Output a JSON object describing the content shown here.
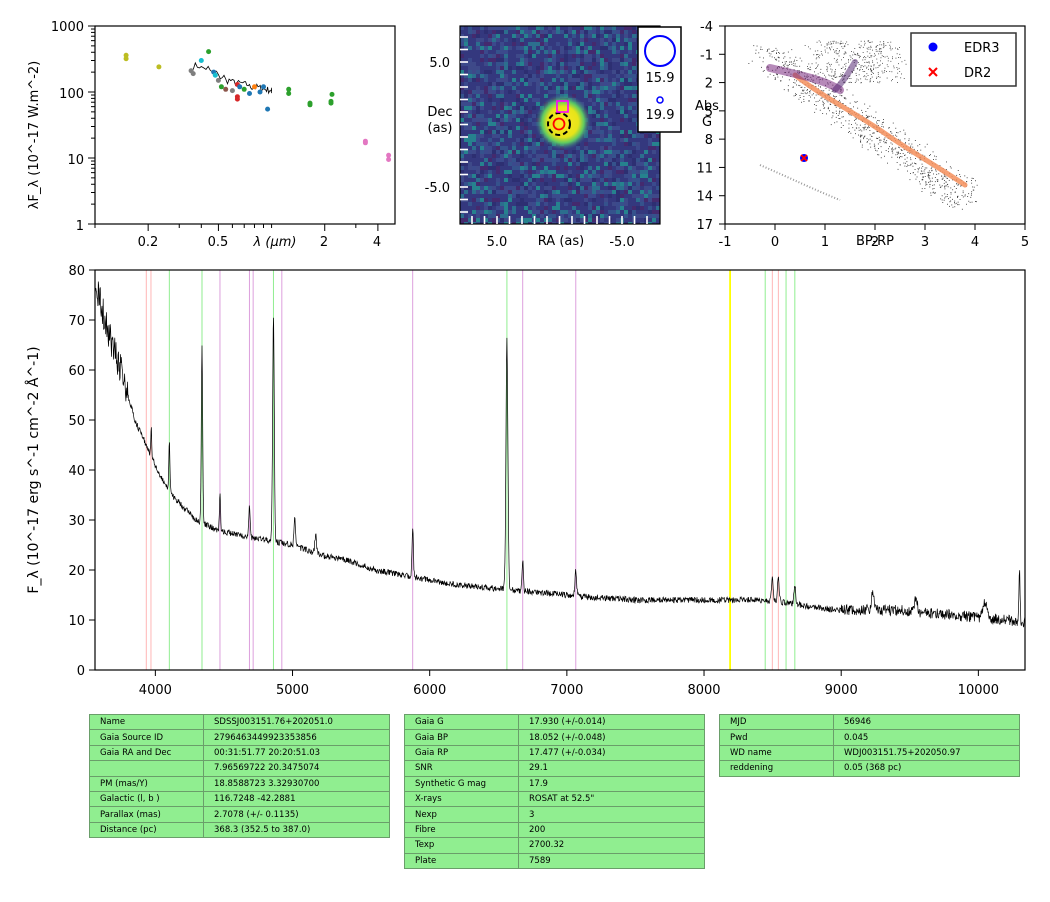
{
  "sed": {
    "ylabel": "λF_λ (10^-17 W.m^-2)",
    "xlabel": "λ (μm)",
    "yticks": [
      "1000",
      "100",
      "10",
      "1"
    ],
    "xticks": [
      "0.2",
      "0.5",
      "2",
      "4"
    ],
    "xlim": [
      0.1,
      5.0
    ],
    "ylim": [
      1,
      1000
    ],
    "points": [
      {
        "x": 0.15,
        "y": 360,
        "color": "#bcbd22"
      },
      {
        "x": 0.15,
        "y": 320,
        "color": "#bcbd22"
      },
      {
        "x": 0.23,
        "y": 240,
        "color": "#bcbd22"
      },
      {
        "x": 0.35,
        "y": 210,
        "color": "#7f7f7f"
      },
      {
        "x": 0.36,
        "y": 190,
        "color": "#7f7f7f"
      },
      {
        "x": 0.4,
        "y": 300,
        "color": "#17becf"
      },
      {
        "x": 0.44,
        "y": 410,
        "color": "#2ca02c"
      },
      {
        "x": 0.47,
        "y": 200,
        "color": "#1f77b4"
      },
      {
        "x": 0.48,
        "y": 180,
        "color": "#17becf"
      },
      {
        "x": 0.5,
        "y": 150,
        "color": "#7f7f7f"
      },
      {
        "x": 0.52,
        "y": 120,
        "color": "#2ca02c"
      },
      {
        "x": 0.55,
        "y": 110,
        "color": "#8c564b"
      },
      {
        "x": 0.6,
        "y": 105,
        "color": "#7f7f7f"
      },
      {
        "x": 0.64,
        "y": 130,
        "color": "#d62728"
      },
      {
        "x": 0.64,
        "y": 85,
        "color": "#d62728"
      },
      {
        "x": 0.64,
        "y": 78,
        "color": "#d62728"
      },
      {
        "x": 0.66,
        "y": 120,
        "color": "#1f77b4"
      },
      {
        "x": 0.7,
        "y": 110,
        "color": "#2ca02c"
      },
      {
        "x": 0.75,
        "y": 95,
        "color": "#1f77b4"
      },
      {
        "x": 0.8,
        "y": 120,
        "color": "#ff7f0e"
      },
      {
        "x": 0.86,
        "y": 100,
        "color": "#1f77b4"
      },
      {
        "x": 0.9,
        "y": 120,
        "color": "#1f77b4"
      },
      {
        "x": 0.95,
        "y": 55,
        "color": "#1f77b4"
      },
      {
        "x": 1.25,
        "y": 110,
        "color": "#2ca02c"
      },
      {
        "x": 1.25,
        "y": 95,
        "color": "#2ca02c"
      },
      {
        "x": 1.65,
        "y": 68,
        "color": "#2ca02c"
      },
      {
        "x": 1.65,
        "y": 64,
        "color": "#2ca02c"
      },
      {
        "x": 2.17,
        "y": 72,
        "color": "#2ca02c"
      },
      {
        "x": 2.17,
        "y": 68,
        "color": "#2ca02c"
      },
      {
        "x": 2.2,
        "y": 92,
        "color": "#2ca02c"
      },
      {
        "x": 3.4,
        "y": 18,
        "color": "#e377c2"
      },
      {
        "x": 3.4,
        "y": 17,
        "color": "#e377c2"
      },
      {
        "x": 4.6,
        "y": 11,
        "color": "#e377c2"
      },
      {
        "x": 4.6,
        "y": 9.5,
        "color": "#e377c2"
      }
    ],
    "spectrum": [
      [
        0.36,
        250
      ],
      [
        0.4,
        230
      ],
      [
        0.45,
        200
      ],
      [
        0.5,
        170
      ],
      [
        0.55,
        150
      ],
      [
        0.6,
        140
      ],
      [
        0.65,
        135
      ],
      [
        0.7,
        130
      ],
      [
        0.75,
        120
      ],
      [
        0.8,
        118
      ],
      [
        0.85,
        115
      ],
      [
        0.9,
        110
      ],
      [
        0.95,
        108
      ],
      [
        1.0,
        105
      ]
    ]
  },
  "image_panel": {
    "ylabel_line1": "Dec",
    "ylabel_line2": "(as)",
    "xlabel": "RA (as)",
    "xticks": [
      "5.0",
      "-5.0"
    ],
    "yticks": [
      "5.0",
      "-5.0"
    ],
    "legend": [
      "15.9",
      "19.9"
    ]
  },
  "cmd": {
    "ylabel_line1": "Abs",
    "ylabel_line2": "G",
    "xlabel": "BP-RP",
    "yticks": [
      "-4",
      "-1",
      "2",
      "5",
      "8",
      "11",
      "14",
      "17"
    ],
    "xticks": [
      "-1",
      "0",
      "1",
      "2",
      "3",
      "4",
      "5"
    ],
    "xlim": [
      -1,
      5
    ],
    "ylim": [
      17,
      -4
    ],
    "legend": [
      {
        "label": "EDR3",
        "color": "#0000ff",
        "marker": "circle"
      },
      {
        "label": "DR2",
        "color": "#ff0000",
        "marker": "x"
      }
    ],
    "target": {
      "bp_rp": 0.58,
      "abs_g": 10.0
    }
  },
  "chart_data": {
    "type": "line",
    "ylabel": "F_λ (10^-17 erg s^-1 cm^-2 Å^-1)",
    "xlabel": "",
    "xlim": [
      3560,
      10340
    ],
    "ylim": [
      0,
      80
    ],
    "xticks": [
      4000,
      5000,
      6000,
      7000,
      8000,
      9000,
      10000
    ],
    "yticks": [
      0,
      10,
      20,
      30,
      40,
      50,
      60,
      70,
      80
    ],
    "continuum": [
      [
        3560,
        78
      ],
      [
        3650,
        68
      ],
      [
        3750,
        60
      ],
      [
        3850,
        50
      ],
      [
        3950,
        44
      ],
      [
        4050,
        38
      ],
      [
        4150,
        34
      ],
      [
        4300,
        30
      ],
      [
        4450,
        28
      ],
      [
        4600,
        27
      ],
      [
        4800,
        26
      ],
      [
        5000,
        25
      ],
      [
        5200,
        23
      ],
      [
        5400,
        22
      ],
      [
        5600,
        20
      ],
      [
        5800,
        19
      ],
      [
        6000,
        18
      ],
      [
        6200,
        17
      ],
      [
        6400,
        16.5
      ],
      [
        6600,
        16
      ],
      [
        6800,
        15.5
      ],
      [
        7000,
        15
      ],
      [
        7200,
        14.5
      ],
      [
        7500,
        14
      ],
      [
        7800,
        14
      ],
      [
        8000,
        14
      ],
      [
        8200,
        14
      ],
      [
        8400,
        14
      ],
      [
        8600,
        13.5
      ],
      [
        8800,
        12.5
      ],
      [
        9000,
        12
      ],
      [
        9200,
        12
      ],
      [
        9400,
        12
      ],
      [
        9600,
        11.5
      ],
      [
        9800,
        11
      ],
      [
        10000,
        10.5
      ],
      [
        10200,
        10
      ],
      [
        10340,
        9.5
      ]
    ],
    "emission_lines": [
      [
        3970,
        6,
        3
      ],
      [
        4102,
        10,
        4
      ],
      [
        4340,
        35,
        5
      ],
      [
        4471,
        8,
        4
      ],
      [
        4686,
        6,
        5
      ],
      [
        4861,
        45,
        6
      ],
      [
        5016,
        6,
        5
      ],
      [
        5169,
        4,
        6
      ],
      [
        5876,
        10,
        5
      ],
      [
        6563,
        50,
        7
      ],
      [
        6678,
        6,
        5
      ],
      [
        7065,
        5,
        6
      ],
      [
        8498,
        5,
        6
      ],
      [
        8542,
        5,
        6
      ],
      [
        8662,
        4,
        6
      ],
      [
        9229,
        3,
        10
      ],
      [
        9546,
        3,
        10
      ],
      [
        10050,
        3,
        15
      ],
      [
        10300,
        10,
        4
      ]
    ],
    "vlines": [
      {
        "x": 3934,
        "color": "#ffb6b6"
      },
      {
        "x": 3968,
        "color": "#ffb6b6"
      },
      {
        "x": 4102,
        "color": "#90ee90"
      },
      {
        "x": 4340,
        "color": "#90ee90"
      },
      {
        "x": 4471,
        "color": "#dda0dd"
      },
      {
        "x": 4686,
        "color": "#dda0dd"
      },
      {
        "x": 4713,
        "color": "#dda0dd"
      },
      {
        "x": 4861,
        "color": "#90ee90"
      },
      {
        "x": 4922,
        "color": "#dda0dd"
      },
      {
        "x": 5876,
        "color": "#dda0dd"
      },
      {
        "x": 6563,
        "color": "#90ee90"
      },
      {
        "x": 6678,
        "color": "#dda0dd"
      },
      {
        "x": 7065,
        "color": "#dda0dd"
      },
      {
        "x": 8190,
        "color": "#ffff00"
      },
      {
        "x": 8446,
        "color": "#90ee90"
      },
      {
        "x": 8498,
        "color": "#ffb6b6"
      },
      {
        "x": 8542,
        "color": "#ffb6b6"
      },
      {
        "x": 8598,
        "color": "#90ee90"
      },
      {
        "x": 8662,
        "color": "#90ee90"
      }
    ]
  },
  "tables": {
    "left": [
      [
        "Name",
        "SDSSJ003151.76+202051.0"
      ],
      [
        "Gaia Source ID",
        "2796463449923353856"
      ],
      [
        "Gaia RA and Dec",
        "00:31:51.77    20:20:51.03"
      ],
      [
        "",
        "7.96569722    20.3475074"
      ],
      [
        "PM (mas/Y)",
        "18.8588723    3.32930700"
      ],
      [
        "Galactic (l, b )",
        "116.7248    -42.2881"
      ],
      [
        "Parallax (mas)",
        "2.7078 (+/- 0.1135)"
      ],
      [
        "Distance (pc)",
        "368.3 (352.5 to 387.0)"
      ]
    ],
    "middle": [
      [
        "Gaia G",
        "17.930 (+/-0.014)"
      ],
      [
        "Gaia BP",
        "18.052 (+/-0.048)"
      ],
      [
        "Gaia RP",
        "17.477 (+/-0.034)"
      ],
      [
        "SNR",
        "29.1"
      ],
      [
        "Synthetic G mag",
        "17.9"
      ],
      [
        "X-rays",
        "ROSAT at 52.5\""
      ],
      [
        "Nexp",
        "3"
      ],
      [
        "Fibre",
        "200"
      ],
      [
        "Texp",
        "2700.32"
      ],
      [
        "Plate",
        "7589"
      ]
    ],
    "right": [
      [
        "MJD",
        "56946"
      ],
      [
        "Pwd",
        "0.045"
      ],
      [
        "WD name",
        "WDJ003151.75+202050.97"
      ],
      [
        "reddening",
        "0.05 (368 pc)"
      ]
    ]
  }
}
